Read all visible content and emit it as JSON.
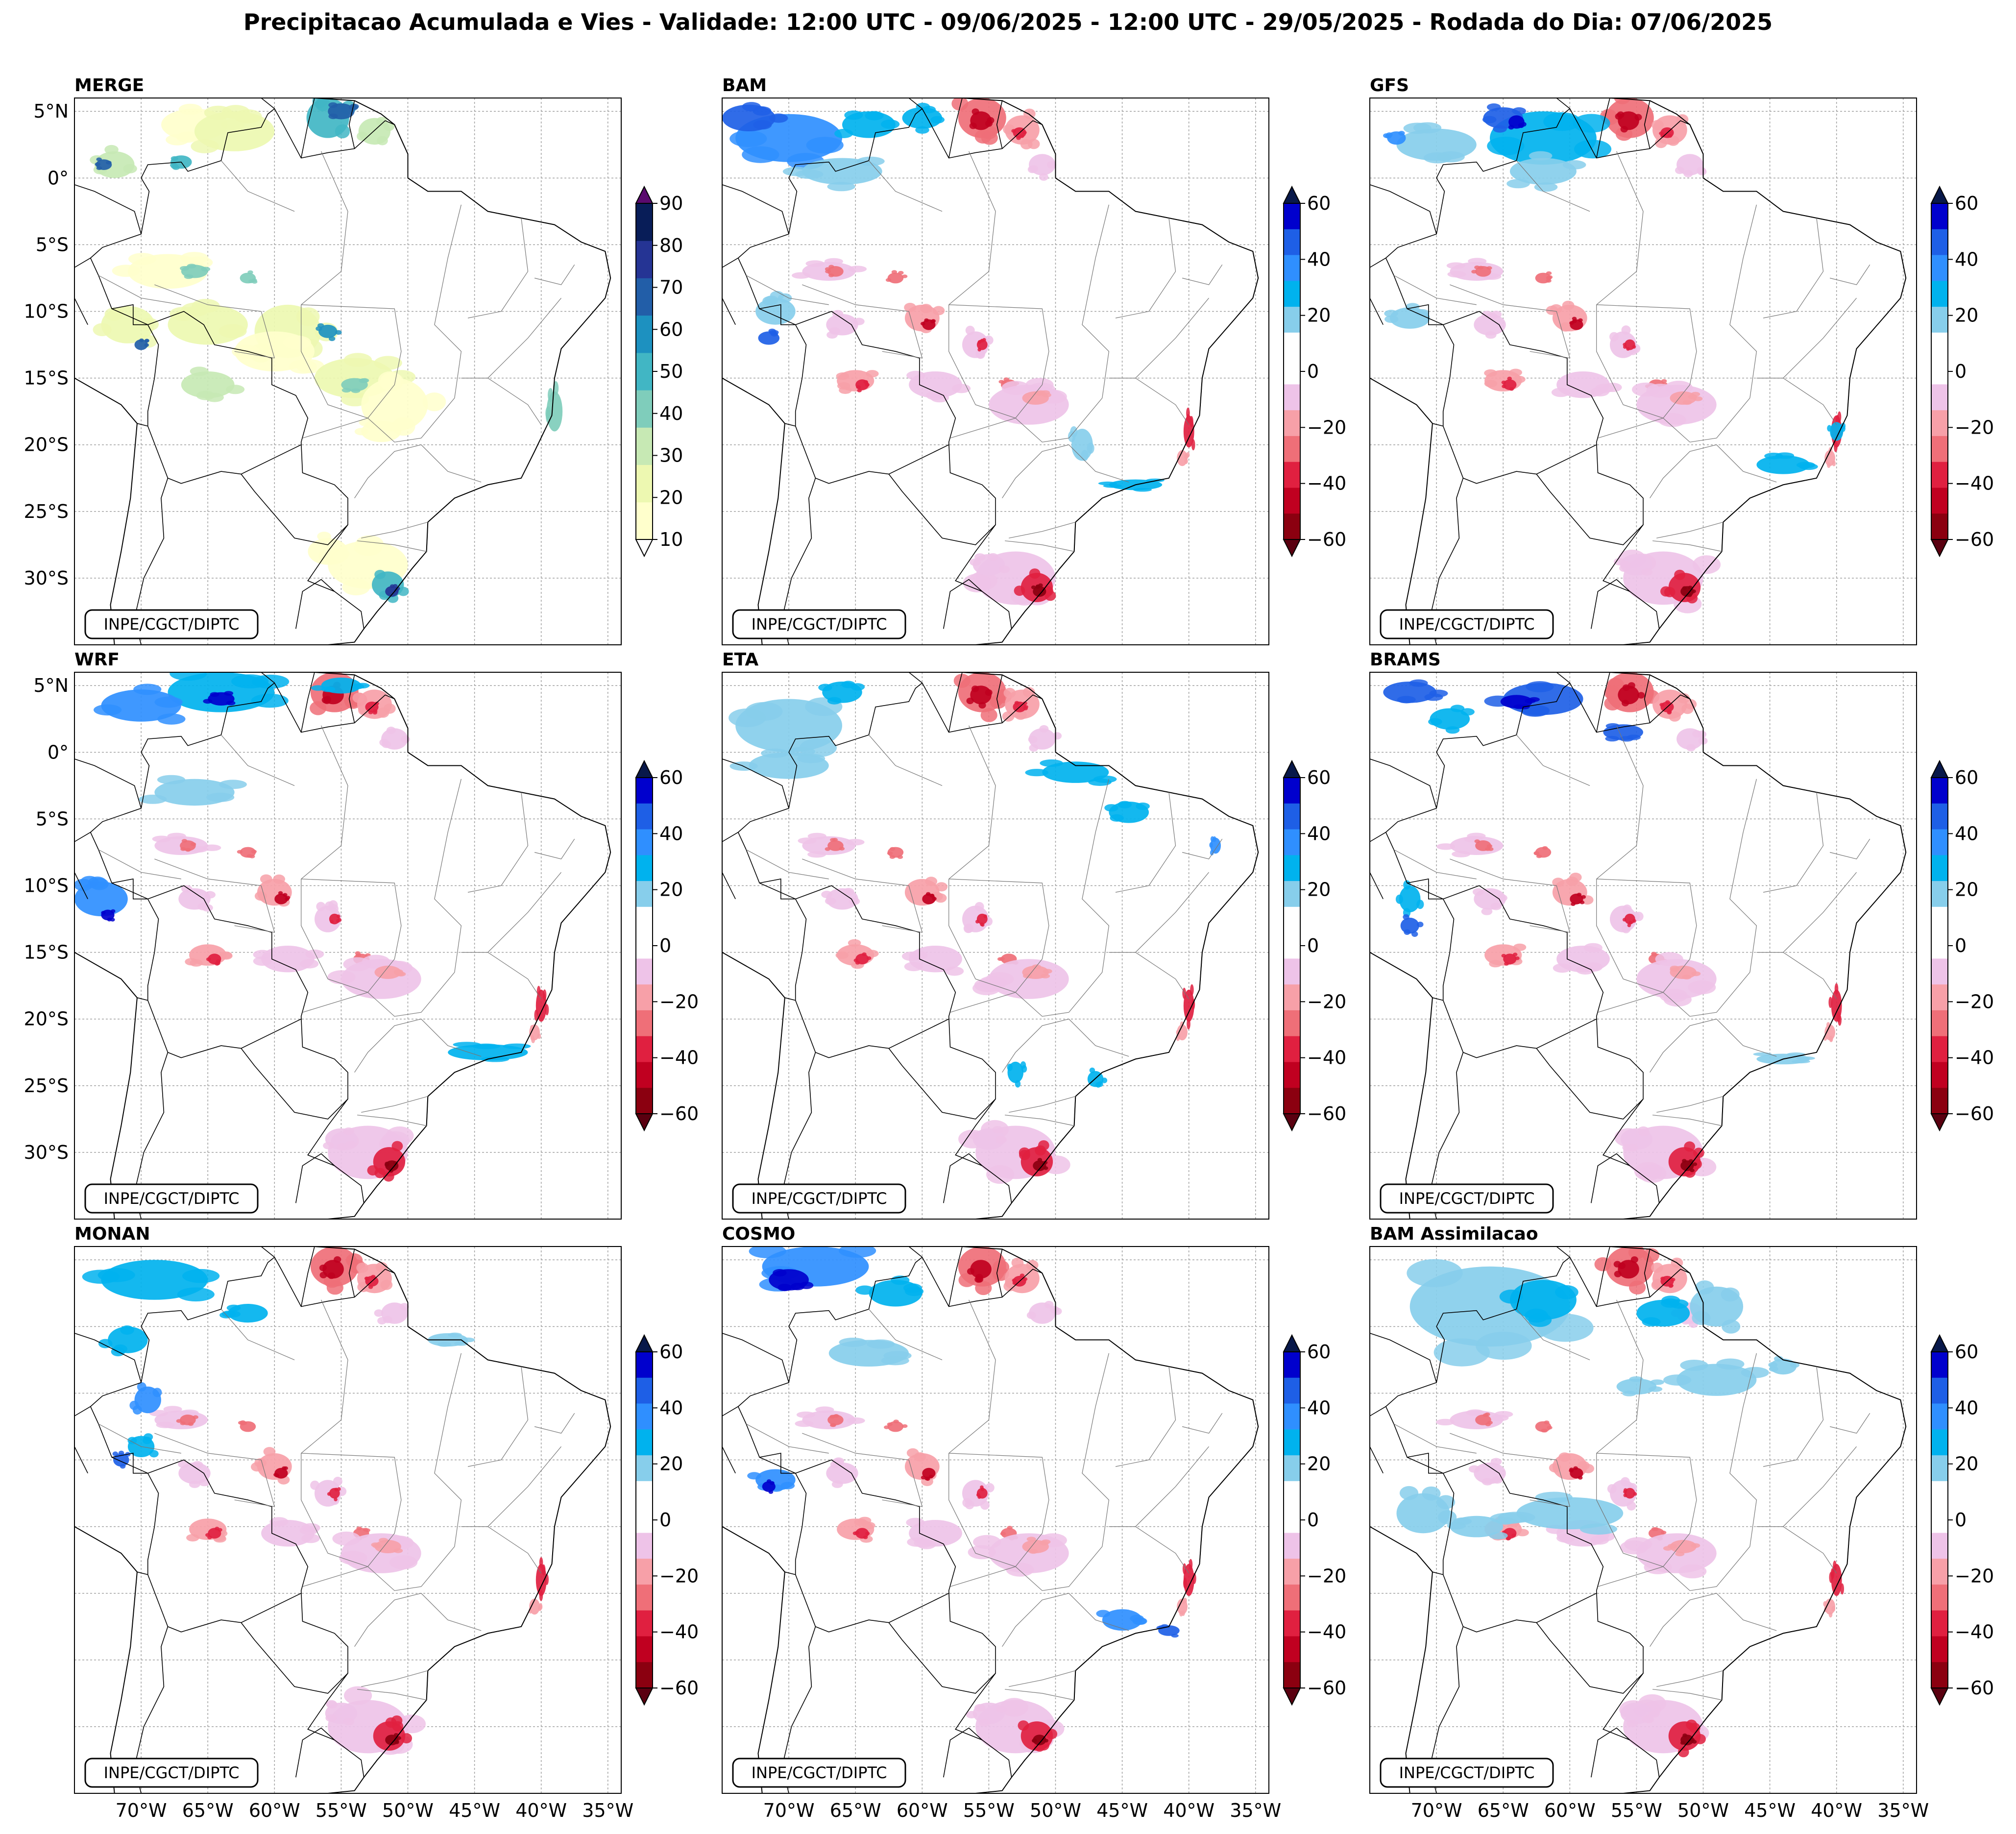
{
  "title": "Precipitacao Acumulada e Vies - Validade: 12:00 UTC - 09/06/2025 - 12:00 UTC - 29/05/2025 - Rodada do Dia: 07/06/2025",
  "credit": "INPE/CGCT/DIPTC",
  "lat_labels": [
    "5°N",
    "0°",
    "5°S",
    "10°S",
    "15°S",
    "20°S",
    "25°S",
    "30°S"
  ],
  "lat_values": [
    5,
    0,
    -5,
    -10,
    -15,
    -20,
    -25,
    -30
  ],
  "lon_labels": [
    "70°W",
    "65°W",
    "60°W",
    "55°W",
    "50°W",
    "45°W",
    "40°W",
    "35°W"
  ],
  "lon_values": [
    -70,
    -65,
    -60,
    -55,
    -50,
    -45,
    -40,
    -35
  ],
  "extent": {
    "lon_min": -75,
    "lon_max": -34,
    "lat_min": -35,
    "lat_max": 6
  },
  "colorbars": {
    "merge": {
      "ticks": [
        "10",
        "20",
        "30",
        "40",
        "50",
        "60",
        "70",
        "80",
        "90"
      ],
      "colors": [
        "#ffffcc",
        "#edf8b1",
        "#c7e9b4",
        "#7fcdbb",
        "#41b6c4",
        "#1d91c0",
        "#225ea8",
        "#253494",
        "#081d58"
      ],
      "over": "#5a0a6e",
      "under": "#ffffff"
    },
    "bias": {
      "ticks": [
        "60",
        "40",
        "20",
        "0",
        "−20",
        "−40",
        "−60"
      ],
      "colors": [
        "#0000cd",
        "#1e5fe6",
        "#2f8fff",
        "#00b2ee",
        "#87ceeb",
        "#ffffff",
        "#ffffff",
        "#eec3e8",
        "#f7a0a8",
        "#ef6f78",
        "#e02040",
        "#c00020",
        "#8b0010"
      ],
      "over": "#08184a",
      "under": "#5a0010"
    }
  },
  "panels": [
    {
      "id": "merge",
      "title": "MERGE",
      "kind": "merge",
      "show_lat": true,
      "show_lon": false
    },
    {
      "id": "bam",
      "title": "BAM",
      "kind": "bias",
      "show_lat": false,
      "show_lon": false
    },
    {
      "id": "gfs",
      "title": "GFS",
      "kind": "bias",
      "show_lat": false,
      "show_lon": false
    },
    {
      "id": "wrf",
      "title": "WRF",
      "kind": "bias",
      "show_lat": true,
      "show_lon": false
    },
    {
      "id": "eta",
      "title": "ETA",
      "kind": "bias",
      "show_lat": false,
      "show_lon": false
    },
    {
      "id": "brams",
      "title": "BRAMS",
      "kind": "bias",
      "show_lat": false,
      "show_lon": false
    },
    {
      "id": "monan",
      "title": "MONAN",
      "kind": "bias",
      "show_lat": false,
      "show_lon": true
    },
    {
      "id": "cosmo",
      "title": "COSMO",
      "kind": "bias",
      "show_lat": false,
      "show_lon": true
    },
    {
      "id": "bam-assimilacao",
      "title": "BAM Assimilacao",
      "kind": "bias",
      "show_lat": false,
      "show_lon": true
    }
  ]
}
